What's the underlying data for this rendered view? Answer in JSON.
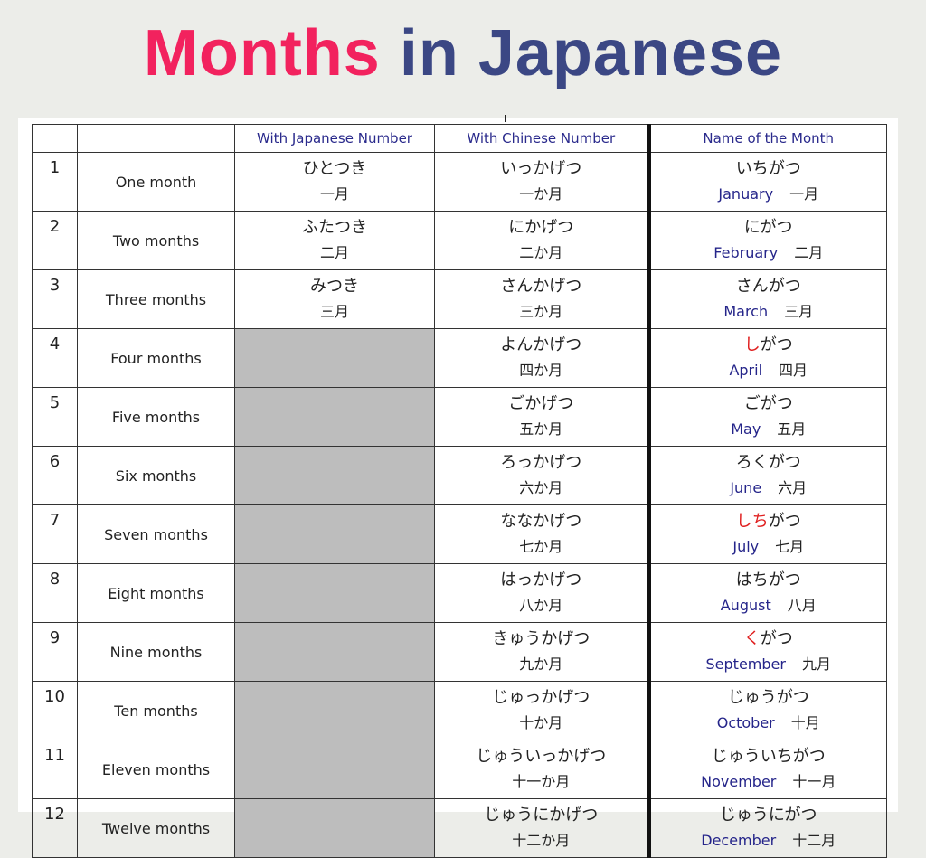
{
  "title": {
    "part1": "Months",
    "part2": "in Japanese"
  },
  "colors": {
    "title_pink": "#f2225e",
    "title_navy": "#3b4784",
    "header_text": "#2a2a8c",
    "highlight": "#e02020",
    "empty_cell": "#bdbdbd"
  },
  "headers": [
    "",
    "",
    "With Japanese Number",
    "With Chinese Number",
    "Name of the Month"
  ],
  "rows": [
    {
      "num": "1",
      "english": "One month",
      "jp_kana": "ひとつき",
      "jp_kanji": "一月",
      "cn_kana": "いっかげつ",
      "cn_kanji": "一か月",
      "name_segments": [
        {
          "text": "いちがつ",
          "highlight": false
        }
      ],
      "month": "January",
      "month_kanji": "一月"
    },
    {
      "num": "2",
      "english": "Two months",
      "jp_kana": "ふたつき",
      "jp_kanji": "二月",
      "cn_kana": "にかげつ",
      "cn_kanji": "二か月",
      "name_segments": [
        {
          "text": "にがつ",
          "highlight": false
        }
      ],
      "month": "February",
      "month_kanji": "二月"
    },
    {
      "num": "3",
      "english": "Three months",
      "jp_kana": "みつき",
      "jp_kanji": "三月",
      "cn_kana": "さんかげつ",
      "cn_kanji": "三か月",
      "name_segments": [
        {
          "text": "さんがつ",
          "highlight": false
        }
      ],
      "month": "March",
      "month_kanji": "三月"
    },
    {
      "num": "4",
      "english": "Four months",
      "jp_kana": "",
      "jp_kanji": "",
      "cn_kana": "よんかげつ",
      "cn_kanji": "四か月",
      "name_segments": [
        {
          "text": "し",
          "highlight": true
        },
        {
          "text": "がつ",
          "highlight": false
        }
      ],
      "month": "April",
      "month_kanji": "四月"
    },
    {
      "num": "5",
      "english": "Five months",
      "jp_kana": "",
      "jp_kanji": "",
      "cn_kana": "ごかげつ",
      "cn_kanji": "五か月",
      "name_segments": [
        {
          "text": "ごがつ",
          "highlight": false
        }
      ],
      "month": "May",
      "month_kanji": "五月"
    },
    {
      "num": "6",
      "english": "Six months",
      "jp_kana": "",
      "jp_kanji": "",
      "cn_kana": "ろっかげつ",
      "cn_kanji": "六か月",
      "name_segments": [
        {
          "text": "ろくがつ",
          "highlight": false
        }
      ],
      "month": "June",
      "month_kanji": "六月"
    },
    {
      "num": "7",
      "english": "Seven months",
      "jp_kana": "",
      "jp_kanji": "",
      "cn_kana": "ななかげつ",
      "cn_kanji": "七か月",
      "name_segments": [
        {
          "text": "しち",
          "highlight": true
        },
        {
          "text": "がつ",
          "highlight": false
        }
      ],
      "month": "July",
      "month_kanji": "七月"
    },
    {
      "num": "8",
      "english": "Eight months",
      "jp_kana": "",
      "jp_kanji": "",
      "cn_kana": "はっかげつ",
      "cn_kanji": "八か月",
      "name_segments": [
        {
          "text": "はちがつ",
          "highlight": false
        }
      ],
      "month": "August",
      "month_kanji": "八月"
    },
    {
      "num": "9",
      "english": "Nine months",
      "jp_kana": "",
      "jp_kanji": "",
      "cn_kana": "きゅうかげつ",
      "cn_kanji": "九か月",
      "name_segments": [
        {
          "text": "く",
          "highlight": true
        },
        {
          "text": "がつ",
          "highlight": false
        }
      ],
      "month": "September",
      "month_kanji": "九月"
    },
    {
      "num": "10",
      "english": "Ten months",
      "jp_kana": "",
      "jp_kanji": "",
      "cn_kana": "じゅっかげつ",
      "cn_kanji": "十か月",
      "name_segments": [
        {
          "text": "じゅうがつ",
          "highlight": false
        }
      ],
      "month": "October",
      "month_kanji": "十月"
    },
    {
      "num": "11",
      "english": "Eleven months",
      "jp_kana": "",
      "jp_kanji": "",
      "cn_kana": "じゅういっかげつ",
      "cn_kanji": "十一か月",
      "name_segments": [
        {
          "text": "じゅういちがつ",
          "highlight": false
        }
      ],
      "month": "November",
      "month_kanji": "十一月"
    },
    {
      "num": "12",
      "english": "Twelve months",
      "jp_kana": "",
      "jp_kanji": "",
      "cn_kana": "じゅうにかげつ",
      "cn_kanji": "十二か月",
      "name_segments": [
        {
          "text": "じゅうにがつ",
          "highlight": false
        }
      ],
      "month": "December",
      "month_kanji": "十二月"
    }
  ]
}
